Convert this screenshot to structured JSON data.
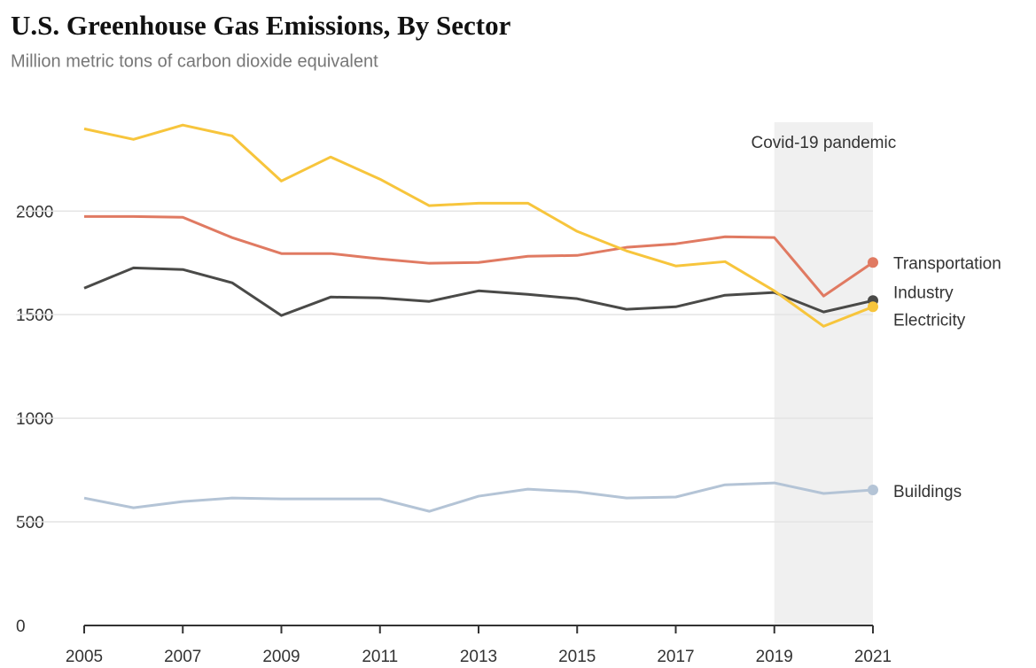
{
  "chart_data": {
    "type": "line",
    "title": "U.S. Greenhouse Gas Emissions, By Sector",
    "subtitle": "Million metric tons of carbon dioxide equivalent",
    "x": [
      2005,
      2006,
      2007,
      2008,
      2009,
      2010,
      2011,
      2012,
      2013,
      2014,
      2015,
      2016,
      2017,
      2018,
      2019,
      2020,
      2021
    ],
    "series": [
      {
        "name": "Buildings",
        "color": "#b4c4d6",
        "values": [
          615,
          568,
          598,
          615,
          611,
          611,
          611,
          551,
          624,
          658,
          645,
          615,
          620,
          679,
          688,
          637,
          654
        ]
      },
      {
        "name": "Industry",
        "color": "#4a4a48",
        "values": [
          1628,
          1726,
          1718,
          1654,
          1496,
          1585,
          1581,
          1564,
          1615,
          1598,
          1577,
          1526,
          1538,
          1594,
          1607,
          1513,
          1568
        ]
      },
      {
        "name": "Transportation",
        "color": "#e07a62",
        "values": [
          1974,
          1974,
          1970,
          1872,
          1795,
          1795,
          1769,
          1748,
          1752,
          1782,
          1786,
          1825,
          1842,
          1876,
          1872,
          1590,
          1752
        ]
      },
      {
        "name": "Electricity",
        "color": "#f7c53c",
        "values": [
          2397,
          2346,
          2415,
          2363,
          2145,
          2261,
          2154,
          2026,
          2038,
          2038,
          1902,
          1808,
          1735,
          1756,
          1615,
          1444,
          1538
        ]
      }
    ],
    "xlim": [
      2005,
      2021
    ],
    "xticks": [
      2005,
      2007,
      2009,
      2011,
      2013,
      2015,
      2017,
      2019,
      2021
    ],
    "ylim": [
      0,
      2450
    ],
    "yticks": [
      0,
      500,
      1000,
      1500,
      2000
    ],
    "grid": true,
    "shade": {
      "x": [
        2019,
        2021
      ],
      "label": "Covid-19 pandemic"
    }
  }
}
